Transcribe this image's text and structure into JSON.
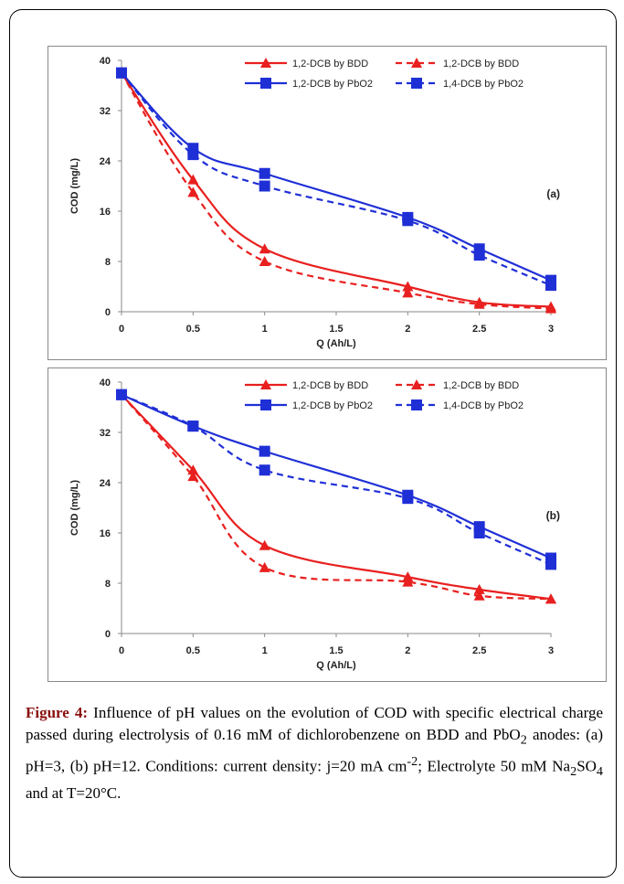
{
  "chart_data": [
    {
      "type": "line",
      "xlabel": "Q (Ah/L)",
      "ylabel": "COD (mg/L)",
      "xlim": [
        0,
        3
      ],
      "ylim": [
        0,
        40
      ],
      "x_ticks": [
        "0",
        "0.5",
        "1",
        "1.5",
        "2",
        "2.5",
        "3"
      ],
      "y_ticks": [
        "0",
        "8",
        "16",
        "24",
        "32",
        "40"
      ],
      "panel_label": "(a)",
      "legend": "top-right",
      "grid": false,
      "series": [
        {
          "name": "1,2-DCB by BDD",
          "color": "#e8201f",
          "style": "solid",
          "marker": "triangle",
          "x": [
            0,
            0.5,
            1,
            2,
            2.5,
            3
          ],
          "y": [
            38,
            21,
            10,
            4,
            1.5,
            0.8
          ]
        },
        {
          "name": "1,2-DCB by BDD",
          "color": "#e8201f",
          "style": "dashed",
          "marker": "triangle",
          "x": [
            0,
            0.5,
            1,
            2,
            2.5,
            3
          ],
          "y": [
            38,
            19,
            8,
            3,
            1.2,
            0.5
          ]
        },
        {
          "name": "1,2-DCB by PbO2",
          "color": "#1f2fd6",
          "style": "solid",
          "marker": "square",
          "x": [
            0,
            0.5,
            1,
            2,
            2.5,
            3
          ],
          "y": [
            38,
            26,
            22,
            15,
            10,
            5
          ]
        },
        {
          "name": "1,4-DCB by PbO2",
          "color": "#1f2fd6",
          "style": "dashed",
          "marker": "square",
          "x": [
            0,
            0.5,
            1,
            2,
            2.5,
            3
          ],
          "y": [
            38,
            25,
            20,
            14.5,
            9,
            4.2
          ]
        }
      ]
    },
    {
      "type": "line",
      "xlabel": "Q (Ah/L)",
      "ylabel": "COD (mg/L)",
      "xlim": [
        0,
        3
      ],
      "ylim": [
        0,
        40
      ],
      "x_ticks": [
        "0",
        "0.5",
        "1",
        "1.5",
        "2",
        "2.5",
        "3"
      ],
      "y_ticks": [
        "0",
        "8",
        "16",
        "24",
        "32",
        "40"
      ],
      "panel_label": "(b)",
      "legend": "top-right",
      "grid": false,
      "series": [
        {
          "name": "1,2-DCB by BDD",
          "color": "#e8201f",
          "style": "solid",
          "marker": "triangle",
          "x": [
            0,
            0.5,
            1,
            2,
            2.5,
            3
          ],
          "y": [
            38,
            26,
            14,
            9,
            7,
            5.5
          ]
        },
        {
          "name": "1,2-DCB by BDD",
          "color": "#e8201f",
          "style": "dashed",
          "marker": "triangle",
          "x": [
            0,
            0.5,
            1,
            2,
            2.5,
            3
          ],
          "y": [
            38,
            25,
            10.5,
            8.2,
            6,
            5.5
          ]
        },
        {
          "name": "1,2-DCB by PbO2",
          "color": "#1f2fd6",
          "style": "solid",
          "marker": "square",
          "x": [
            0,
            0.5,
            1,
            2,
            2.5,
            3
          ],
          "y": [
            38,
            33,
            29,
            22,
            17,
            12
          ]
        },
        {
          "name": "1,4-DCB by PbO2",
          "color": "#1f2fd6",
          "style": "dashed",
          "marker": "square",
          "x": [
            0,
            0.5,
            1,
            2,
            2.5,
            3
          ],
          "y": [
            38,
            33,
            26,
            21.5,
            16,
            11
          ]
        }
      ]
    }
  ],
  "caption": {
    "label": "Figure 4:",
    "text_1": " Influence of pH values on the evolution of COD with specific electrical charge passed during electrolysis of 0.16 mM of dichlorobenzene on BDD and PbO",
    "sub_1": "2",
    "text_2": " anodes: (a) pH=3, (b) pH=12. Conditions: current density: j=20 mA cm",
    "sup_1": "-2",
    "text_3": "; Electrolyte 50 mM Na",
    "sub_2": "2",
    "text_4": "SO",
    "sub_3": "4",
    "text_5": " and at T=20°C."
  }
}
